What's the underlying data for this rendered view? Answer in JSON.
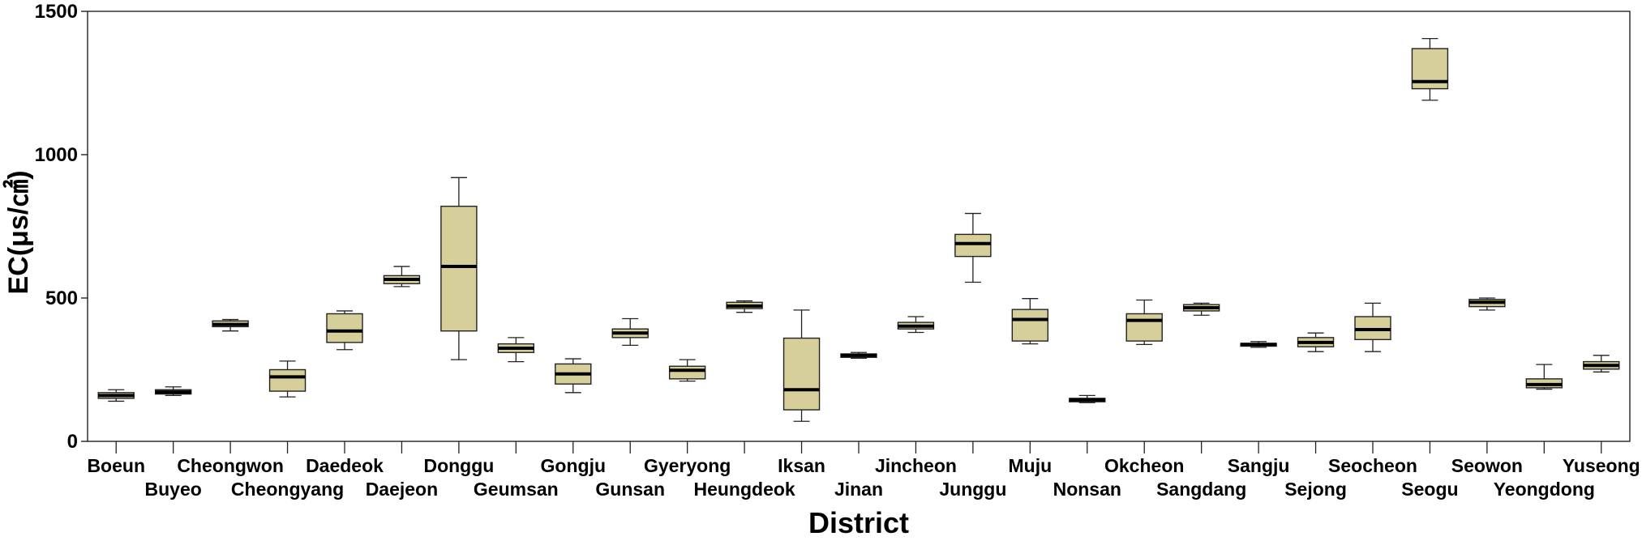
{
  "chart_data": {
    "type": "boxplot",
    "xlabel": "District",
    "ylabel": "EC(μs/㎠)",
    "ylim": [
      0,
      1500
    ],
    "yticks": [
      0,
      500,
      1000,
      1500
    ],
    "grid": false,
    "box_color": "#d6cf9a",
    "categories": [
      "Boeun",
      "Buyeo",
      "Cheongwon",
      "Cheongyang",
      "Daedeok",
      "Daejeon",
      "Donggu",
      "Geumsan",
      "Gongju",
      "Gunsan",
      "Gyeryong",
      "Heungdeok",
      "Iksan",
      "Jinan",
      "Jincheon",
      "Junggu",
      "Muju",
      "Nonsan",
      "Okcheon",
      "Sangdang",
      "Sangju",
      "Sejong",
      "Seocheon",
      "Seogu",
      "Seowon",
      "Yeongdong",
      "Yuseong"
    ],
    "boxes": [
      {
        "min": 140,
        "q1": 150,
        "median": 160,
        "q3": 170,
        "max": 180
      },
      {
        "min": 160,
        "q1": 165,
        "median": 172,
        "q3": 180,
        "max": 190
      },
      {
        "min": 385,
        "q1": 400,
        "median": 408,
        "q3": 420,
        "max": 425
      },
      {
        "min": 155,
        "q1": 175,
        "median": 225,
        "q3": 250,
        "max": 280
      },
      {
        "min": 320,
        "q1": 345,
        "median": 385,
        "q3": 445,
        "max": 455
      },
      {
        "min": 540,
        "q1": 550,
        "median": 565,
        "q3": 578,
        "max": 610
      },
      {
        "min": 285,
        "q1": 385,
        "median": 610,
        "q3": 820,
        "max": 920
      },
      {
        "min": 278,
        "q1": 310,
        "median": 325,
        "q3": 340,
        "max": 362
      },
      {
        "min": 170,
        "q1": 200,
        "median": 235,
        "q3": 270,
        "max": 288
      },
      {
        "min": 335,
        "q1": 362,
        "median": 378,
        "q3": 392,
        "max": 428
      },
      {
        "min": 210,
        "q1": 218,
        "median": 248,
        "q3": 262,
        "max": 285
      },
      {
        "min": 450,
        "q1": 463,
        "median": 472,
        "q3": 485,
        "max": 490
      },
      {
        "min": 70,
        "q1": 110,
        "median": 180,
        "q3": 360,
        "max": 458
      },
      {
        "min": 290,
        "q1": 293,
        "median": 300,
        "q3": 305,
        "max": 310
      },
      {
        "min": 380,
        "q1": 392,
        "median": 402,
        "q3": 415,
        "max": 435
      },
      {
        "min": 555,
        "q1": 645,
        "median": 690,
        "q3": 722,
        "max": 795
      },
      {
        "min": 340,
        "q1": 350,
        "median": 425,
        "q3": 460,
        "max": 498
      },
      {
        "min": 135,
        "q1": 138,
        "median": 145,
        "q3": 150,
        "max": 160
      },
      {
        "min": 338,
        "q1": 350,
        "median": 422,
        "q3": 445,
        "max": 493
      },
      {
        "min": 440,
        "q1": 455,
        "median": 466,
        "q3": 477,
        "max": 482
      },
      {
        "min": 328,
        "q1": 332,
        "median": 338,
        "q3": 342,
        "max": 348
      },
      {
        "min": 313,
        "q1": 330,
        "median": 345,
        "q3": 362,
        "max": 378
      },
      {
        "min": 313,
        "q1": 355,
        "median": 390,
        "q3": 435,
        "max": 482
      },
      {
        "min": 1190,
        "q1": 1230,
        "median": 1255,
        "q3": 1370,
        "max": 1405
      },
      {
        "min": 458,
        "q1": 470,
        "median": 485,
        "q3": 495,
        "max": 500
      },
      {
        "min": 182,
        "q1": 187,
        "median": 198,
        "q3": 218,
        "max": 268
      },
      {
        "min": 242,
        "q1": 252,
        "median": 265,
        "q3": 278,
        "max": 300
      }
    ]
  }
}
